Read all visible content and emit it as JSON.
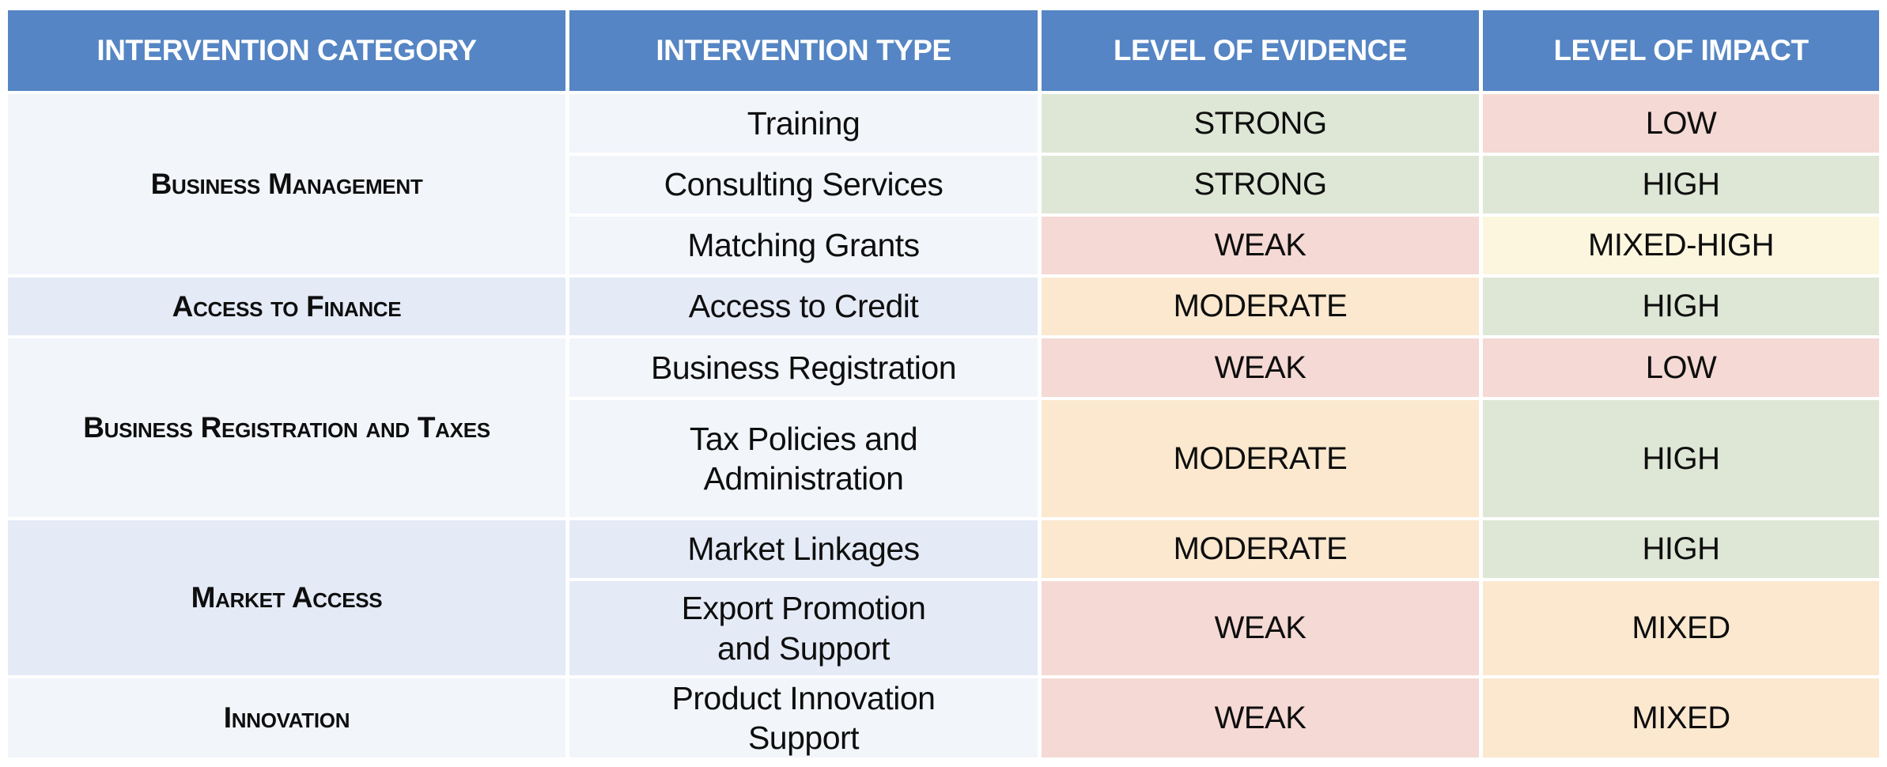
{
  "palette": {
    "page_bg": "#FFFFFF",
    "header_blue": "#5585C4",
    "header_text": "#FFFFFF",
    "body_text": "#0E0E0E",
    "band_light": "#F2F5FA",
    "band_blue": "#E4EAF6",
    "green": "#DEE7D6",
    "pink": "#F5D9D4",
    "orange": "#FBE8CF",
    "yellow": "#FCF6DF"
  },
  "header": {
    "columns": [
      "INTERVENTION CATEGORY",
      "INTERVENTION TYPE",
      "LEVEL OF EVIDENCE",
      "LEVEL OF IMPACT"
    ]
  },
  "groups": [
    {
      "category": "Business Management",
      "band": "band_light",
      "rows": [
        {
          "type": "Training",
          "evidence": {
            "label": "STRONG",
            "tone": "green"
          },
          "impact": {
            "label": "LOW",
            "tone": "pink"
          }
        },
        {
          "type": "Consulting Services",
          "evidence": {
            "label": "STRONG",
            "tone": "green"
          },
          "impact": {
            "label": "HIGH",
            "tone": "green"
          }
        },
        {
          "type": "Matching Grants",
          "evidence": {
            "label": "WEAK",
            "tone": "pink"
          },
          "impact": {
            "label": "MIXED-HIGH",
            "tone": "yellow"
          }
        }
      ]
    },
    {
      "category": "Access to Finance",
      "band": "band_blue",
      "rows": [
        {
          "type": "Access to Credit",
          "evidence": {
            "label": "MODERATE",
            "tone": "orange"
          },
          "impact": {
            "label": "HIGH",
            "tone": "green"
          }
        }
      ]
    },
    {
      "category": "Business Registration and Taxes",
      "band": "band_light",
      "rows": [
        {
          "type": "Business Registration",
          "evidence": {
            "label": "WEAK",
            "tone": "pink"
          },
          "impact": {
            "label": "LOW",
            "tone": "pink"
          }
        },
        {
          "type": "Tax Policies and\nAdministration",
          "evidence": {
            "label": "MODERATE",
            "tone": "orange"
          },
          "impact": {
            "label": "HIGH",
            "tone": "green"
          }
        }
      ]
    },
    {
      "category": "Market Access",
      "band": "band_blue",
      "rows": [
        {
          "type": "Market Linkages",
          "evidence": {
            "label": "MODERATE",
            "tone": "orange"
          },
          "impact": {
            "label": "HIGH",
            "tone": "green"
          }
        },
        {
          "type": "Export Promotion\nand Support",
          "evidence": {
            "label": "WEAK",
            "tone": "pink"
          },
          "impact": {
            "label": "MIXED",
            "tone": "orange"
          }
        }
      ]
    },
    {
      "category": "Innovation",
      "band": "band_light",
      "rows": [
        {
          "type": "Product Innovation\nSupport",
          "evidence": {
            "label": "WEAK",
            "tone": "pink"
          },
          "impact": {
            "label": "MIXED",
            "tone": "orange"
          }
        }
      ]
    }
  ]
}
